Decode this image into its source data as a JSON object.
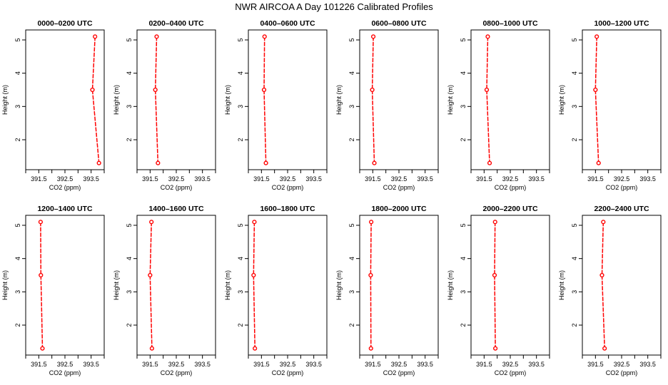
{
  "title": "NWR AIRCOA A  Day 101226  Calibrated Profiles",
  "colors": {
    "profile": "#ff0000",
    "axis": "#000000"
  },
  "chart_data": [
    {
      "type": "line",
      "title": "0000–0200 UTC",
      "xlabel": "CO2 (ppm)",
      "ylabel": "Height (m)",
      "x": [
        393.65,
        393.55,
        393.8
      ],
      "y": [
        5.1,
        3.5,
        1.3
      ]
    },
    {
      "type": "line",
      "title": "0200–0400 UTC",
      "xlabel": "CO2 (ppm)",
      "ylabel": "Height (m)",
      "x": [
        391.75,
        391.7,
        391.8
      ],
      "y": [
        5.1,
        3.5,
        1.3
      ]
    },
    {
      "type": "line",
      "title": "0400–0600 UTC",
      "xlabel": "CO2 (ppm)",
      "ylabel": "Height (m)",
      "x": [
        391.62,
        391.6,
        391.67
      ],
      "y": [
        5.1,
        3.5,
        1.3
      ]
    },
    {
      "type": "line",
      "title": "0600–0800 UTC",
      "xlabel": "CO2 (ppm)",
      "ylabel": "Height (m)",
      "x": [
        391.52,
        391.48,
        391.56
      ],
      "y": [
        5.1,
        3.5,
        1.3
      ]
    },
    {
      "type": "line",
      "title": "0800–1000 UTC",
      "xlabel": "CO2 (ppm)",
      "ylabel": "Height (m)",
      "x": [
        391.64,
        391.6,
        391.71
      ],
      "y": [
        5.1,
        3.5,
        1.3
      ]
    },
    {
      "type": "line",
      "title": "1000–1200 UTC",
      "xlabel": "CO2 (ppm)",
      "ylabel": "Height (m)",
      "x": [
        391.55,
        391.5,
        391.62
      ],
      "y": [
        5.1,
        3.5,
        1.3
      ]
    },
    {
      "type": "line",
      "title": "1200–1400 UTC",
      "xlabel": "CO2 (ppm)",
      "ylabel": "Height (m)",
      "x": [
        391.57,
        391.58,
        391.64
      ],
      "y": [
        5.1,
        3.5,
        1.3
      ]
    },
    {
      "type": "line",
      "title": "1400–1600 UTC",
      "xlabel": "CO2 (ppm)",
      "ylabel": "Height (m)",
      "x": [
        391.55,
        391.5,
        391.57
      ],
      "y": [
        5.1,
        3.5,
        1.3
      ]
    },
    {
      "type": "line",
      "title": "1600–1800 UTC",
      "xlabel": "CO2 (ppm)",
      "ylabel": "Height (m)",
      "x": [
        391.23,
        391.2,
        391.25
      ],
      "y": [
        5.1,
        3.5,
        1.3
      ]
    },
    {
      "type": "line",
      "title": "1800–2000 UTC",
      "xlabel": "CO2 (ppm)",
      "ylabel": "Height (m)",
      "x": [
        391.44,
        391.42,
        391.43
      ],
      "y": [
        5.1,
        3.5,
        1.3
      ]
    },
    {
      "type": "line",
      "title": "2000–2200 UTC",
      "xlabel": "CO2 (ppm)",
      "ylabel": "Height (m)",
      "x": [
        391.92,
        391.9,
        391.93
      ],
      "y": [
        5.1,
        3.5,
        1.3
      ]
    },
    {
      "type": "line",
      "title": "2200–2400 UTC",
      "xlabel": "CO2 (ppm)",
      "ylabel": "Height (m)",
      "x": [
        391.8,
        391.75,
        391.85
      ],
      "y": [
        5.1,
        3.5,
        1.3
      ]
    }
  ],
  "axes": {
    "xlim": [
      391.0,
      394.0
    ],
    "ylim": [
      1.1,
      5.3
    ],
    "xticks": [
      391.5,
      392.5,
      393.5
    ],
    "xtick_labels": [
      "391.5",
      "392.5",
      "393.5"
    ],
    "xminor": [
      391.0,
      392.0,
      393.0,
      394.0
    ],
    "yticks": [
      2,
      3,
      4,
      5
    ],
    "ytick_labels": [
      "2",
      "3",
      "4",
      "5"
    ]
  }
}
